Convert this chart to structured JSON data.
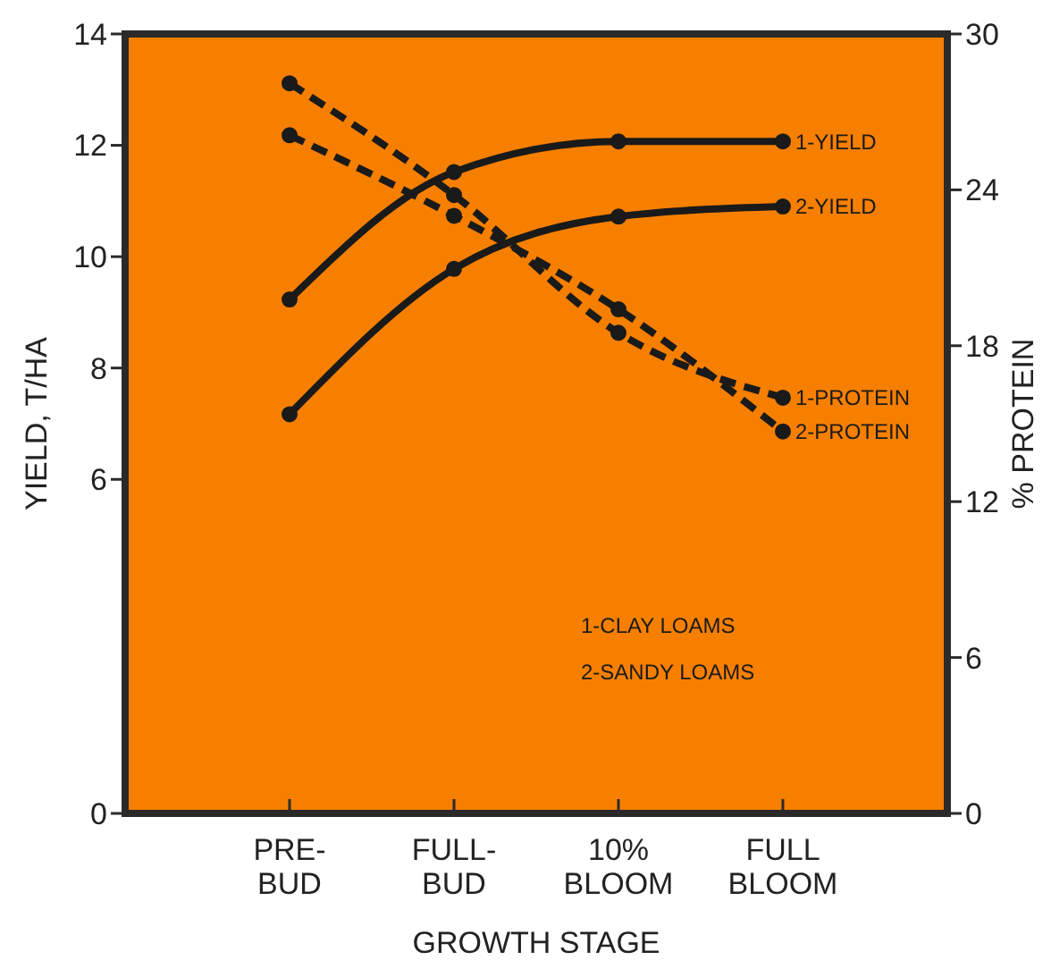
{
  "chart_data": {
    "type": "line",
    "xlabel": "GROWTH STAGE",
    "ylabel": "YIELD, T/HA",
    "y2label": "% PROTEIN",
    "categories": [
      "PRE-\nBUD",
      "FULL-\nBUD",
      "10%\nBLOOM",
      "FULL\nBLOOM"
    ],
    "ylim": [
      0,
      14
    ],
    "yticks": [
      0,
      6,
      8,
      10,
      12,
      14
    ],
    "y2lim": [
      0,
      30
    ],
    "y2ticks": [
      0,
      6,
      12,
      18,
      24,
      30
    ],
    "marker": "circle",
    "grid": false,
    "series": [
      {
        "name": "1-YIELD",
        "color": "#1a1a1a",
        "line_style": "solid",
        "values": [
          9.23,
          11.52,
          12.07,
          12.07
        ]
      },
      {
        "name": "2-YIELD",
        "color": "#1a1a1a",
        "line_style": "solid",
        "values": [
          7.17,
          9.78,
          10.72,
          10.9
        ]
      },
      {
        "name": "1-PROTEIN",
        "color": "#1a1a1a",
        "line_style": "dashed",
        "axis": "y2",
        "values": [
          28.1,
          23.8,
          18.5,
          16.0
        ]
      },
      {
        "name": "2-PROTEIN",
        "color": "#1a1a1a",
        "line_style": "dashed",
        "axis": "y2",
        "values": [
          26.1,
          23.0,
          19.4,
          14.7
        ]
      }
    ],
    "annotations": [
      "1-CLAY LOAMS",
      "2-SANDY LOAMS"
    ]
  }
}
